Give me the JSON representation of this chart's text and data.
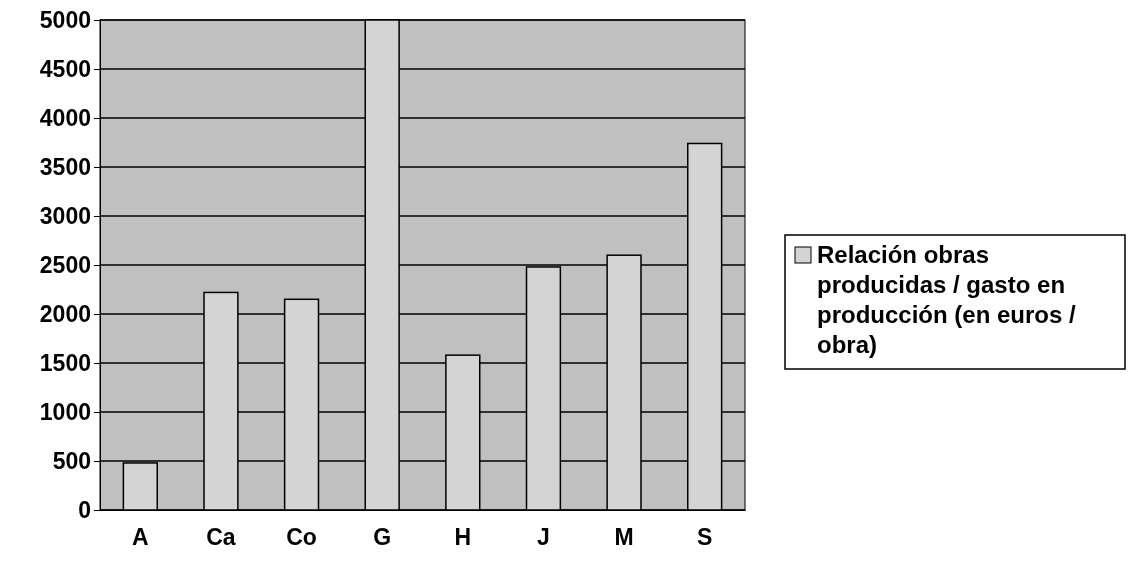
{
  "chart_data": {
    "type": "bar",
    "categories": [
      "A",
      "Ca",
      "Co",
      "G",
      "H",
      "J",
      "M",
      "S"
    ],
    "series": [
      {
        "name": "Relación obras producidas / gasto en producción (en euros / obra)",
        "color": "#d4d4d4",
        "values": [
          480,
          2220,
          2150,
          5000,
          1580,
          2480,
          2600,
          3740
        ]
      }
    ],
    "ylim": [
      0,
      5000
    ],
    "yticks": [
      0,
      500,
      1000,
      1500,
      2000,
      2500,
      3000,
      3500,
      4000,
      4500,
      5000
    ],
    "grid": "y",
    "legend": "right"
  }
}
